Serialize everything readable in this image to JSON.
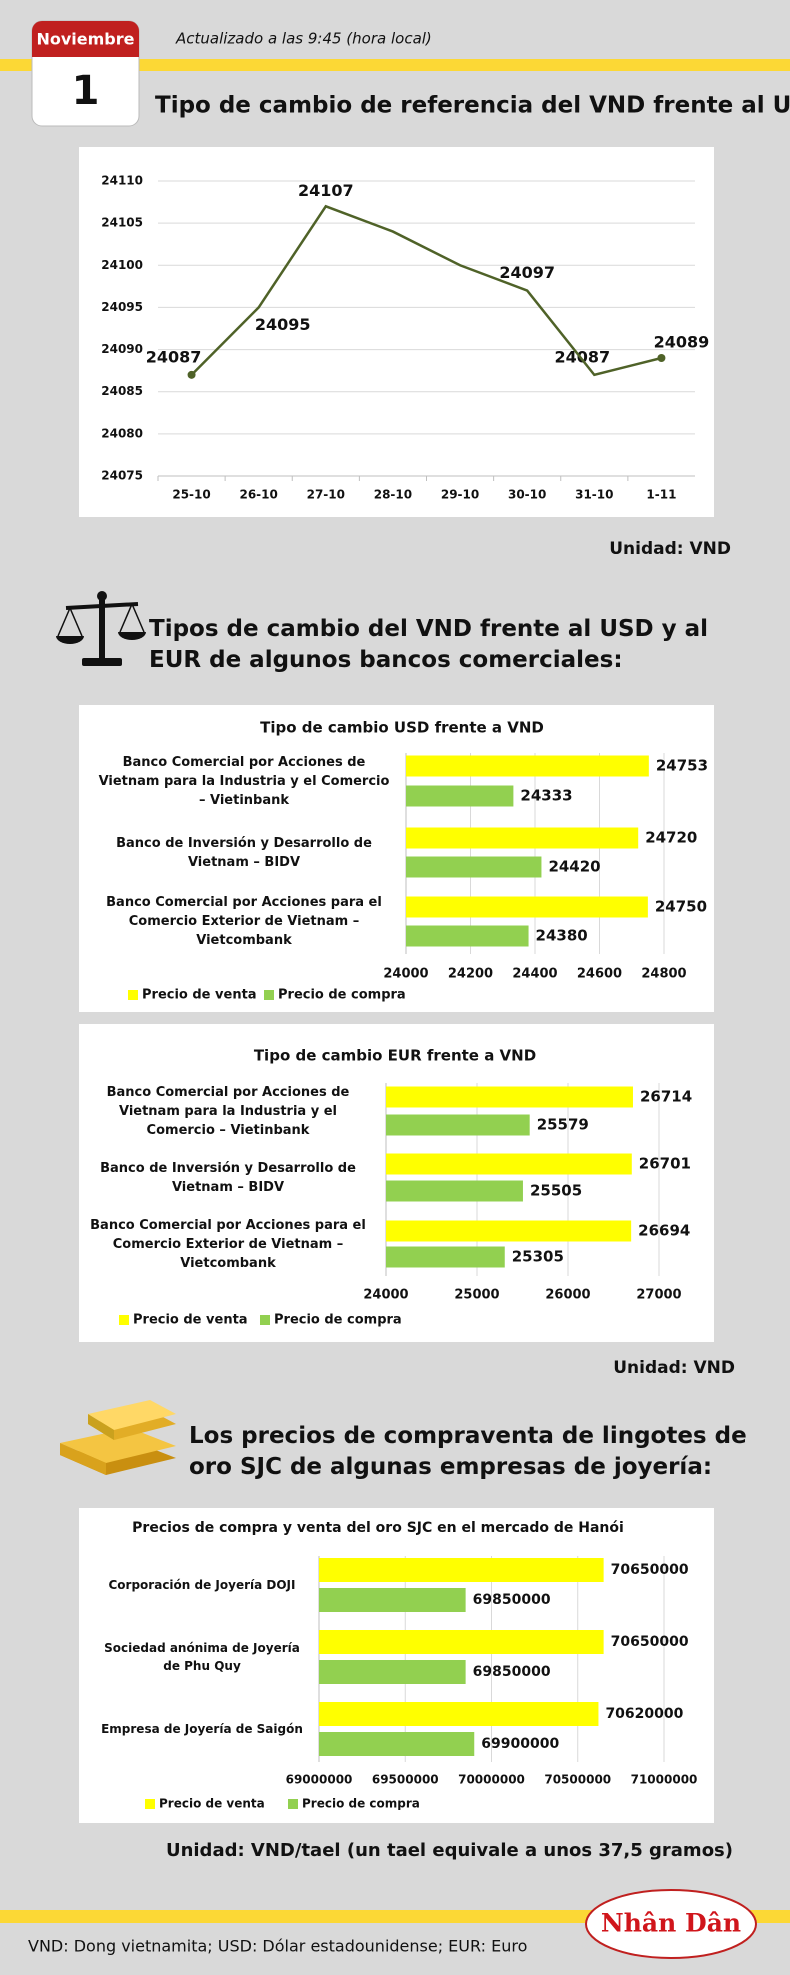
{
  "header": {
    "month": "Noviembre",
    "day": "1",
    "updated": "Actualizado a las 9:45 (hora local)"
  },
  "sections": [
    {
      "title": "Tipo de cambio de referencia del VND frente al USD:",
      "unit": "Unidad: VND"
    },
    {
      "title": "Tipos de cambio del VND frente al USD y al EUR de algunos bancos comerciales:",
      "unit": "Unidad: VND"
    },
    {
      "title": "Los precios de compraventa de lingotes de oro SJC de algunas empresas de joyería:",
      "unit": "Unidad: VND/tael (un tael equivale a unos 37,5 gramos)"
    }
  ],
  "chart_data": [
    {
      "type": "line",
      "categories": [
        "25-10",
        "26-10",
        "27-10",
        "28-10",
        "29-10",
        "30-10",
        "31-10",
        "1-11"
      ],
      "values": [
        24087,
        24095,
        24107,
        24104,
        24100,
        24097,
        24087,
        24089
      ],
      "value_labels": [
        "24087",
        "24095",
        "24107",
        null,
        null,
        "24097",
        "24087",
        "24089"
      ],
      "color": "#4f6228",
      "ylim": [
        24075,
        24110
      ],
      "yticks": [
        24075,
        24080,
        24085,
        24090,
        24095,
        24100,
        24105,
        24110
      ],
      "grid": true
    },
    {
      "type": "barh",
      "title": "Tipo de cambio USD frente a VND",
      "categories": [
        "Banco Comercial por Acciones de Vietnam para la Industria y el Comercio – Vietinbank",
        "Banco de Inversión y Desarrollo de Vietnam – BIDV",
        "Banco Comercial por Acciones para el Comercio Exterior de Vietnam – Vietcombank"
      ],
      "series": [
        {
          "name": "Precio de venta",
          "color": "#ffff00",
          "values": [
            24753,
            24720,
            24750
          ]
        },
        {
          "name": "Precio de compra",
          "color": "#92d050",
          "values": [
            24333,
            24420,
            24380
          ]
        }
      ],
      "xlim": [
        24000,
        24800
      ],
      "xticks": [
        24000,
        24200,
        24400,
        24600,
        24800
      ],
      "grid": true,
      "legend": "bottom"
    },
    {
      "type": "barh",
      "title": "Tipo de cambio EUR frente a VND",
      "categories": [
        "Banco Comercial por Acciones de Vietnam para la Industria y el Comercio – Vietinbank",
        "Banco de Inversión y Desarrollo de Vietnam – BIDV",
        "Banco Comercial por Acciones para el Comercio Exterior de Vietnam – Vietcombank"
      ],
      "series": [
        {
          "name": "Precio de venta",
          "color": "#ffff00",
          "values": [
            26714,
            26701,
            26694
          ]
        },
        {
          "name": "Precio de compra",
          "color": "#92d050",
          "values": [
            25579,
            25505,
            25305
          ]
        }
      ],
      "xlim": [
        24000,
        27000
      ],
      "xticks": [
        24000,
        25000,
        26000,
        27000
      ],
      "grid": true,
      "legend": "bottom"
    },
    {
      "type": "barh",
      "title": "Precios de compra y venta del oro SJC en el mercado de Hanói",
      "categories": [
        "Corporación de Joyería DOJI",
        "Sociedad anónima de Joyería de Phu Quy",
        "Empresa de Joyería de Saigón"
      ],
      "series": [
        {
          "name": "Precio de venta",
          "color": "#ffff00",
          "values": [
            70650000,
            70650000,
            70620000
          ]
        },
        {
          "name": "Precio de compra",
          "color": "#92d050",
          "values": [
            69850000,
            69850000,
            69900000
          ]
        }
      ],
      "xlim": [
        69000000,
        71000000
      ],
      "xticks": [
        69000000,
        69500000,
        70000000,
        70500000,
        71000000
      ],
      "grid": true,
      "legend": "bottom"
    }
  ],
  "footer": {
    "note": "VND: Dong vietnamita; USD: Dólar estadounidense; EUR: Euro",
    "logo": "Nhân Dân"
  }
}
